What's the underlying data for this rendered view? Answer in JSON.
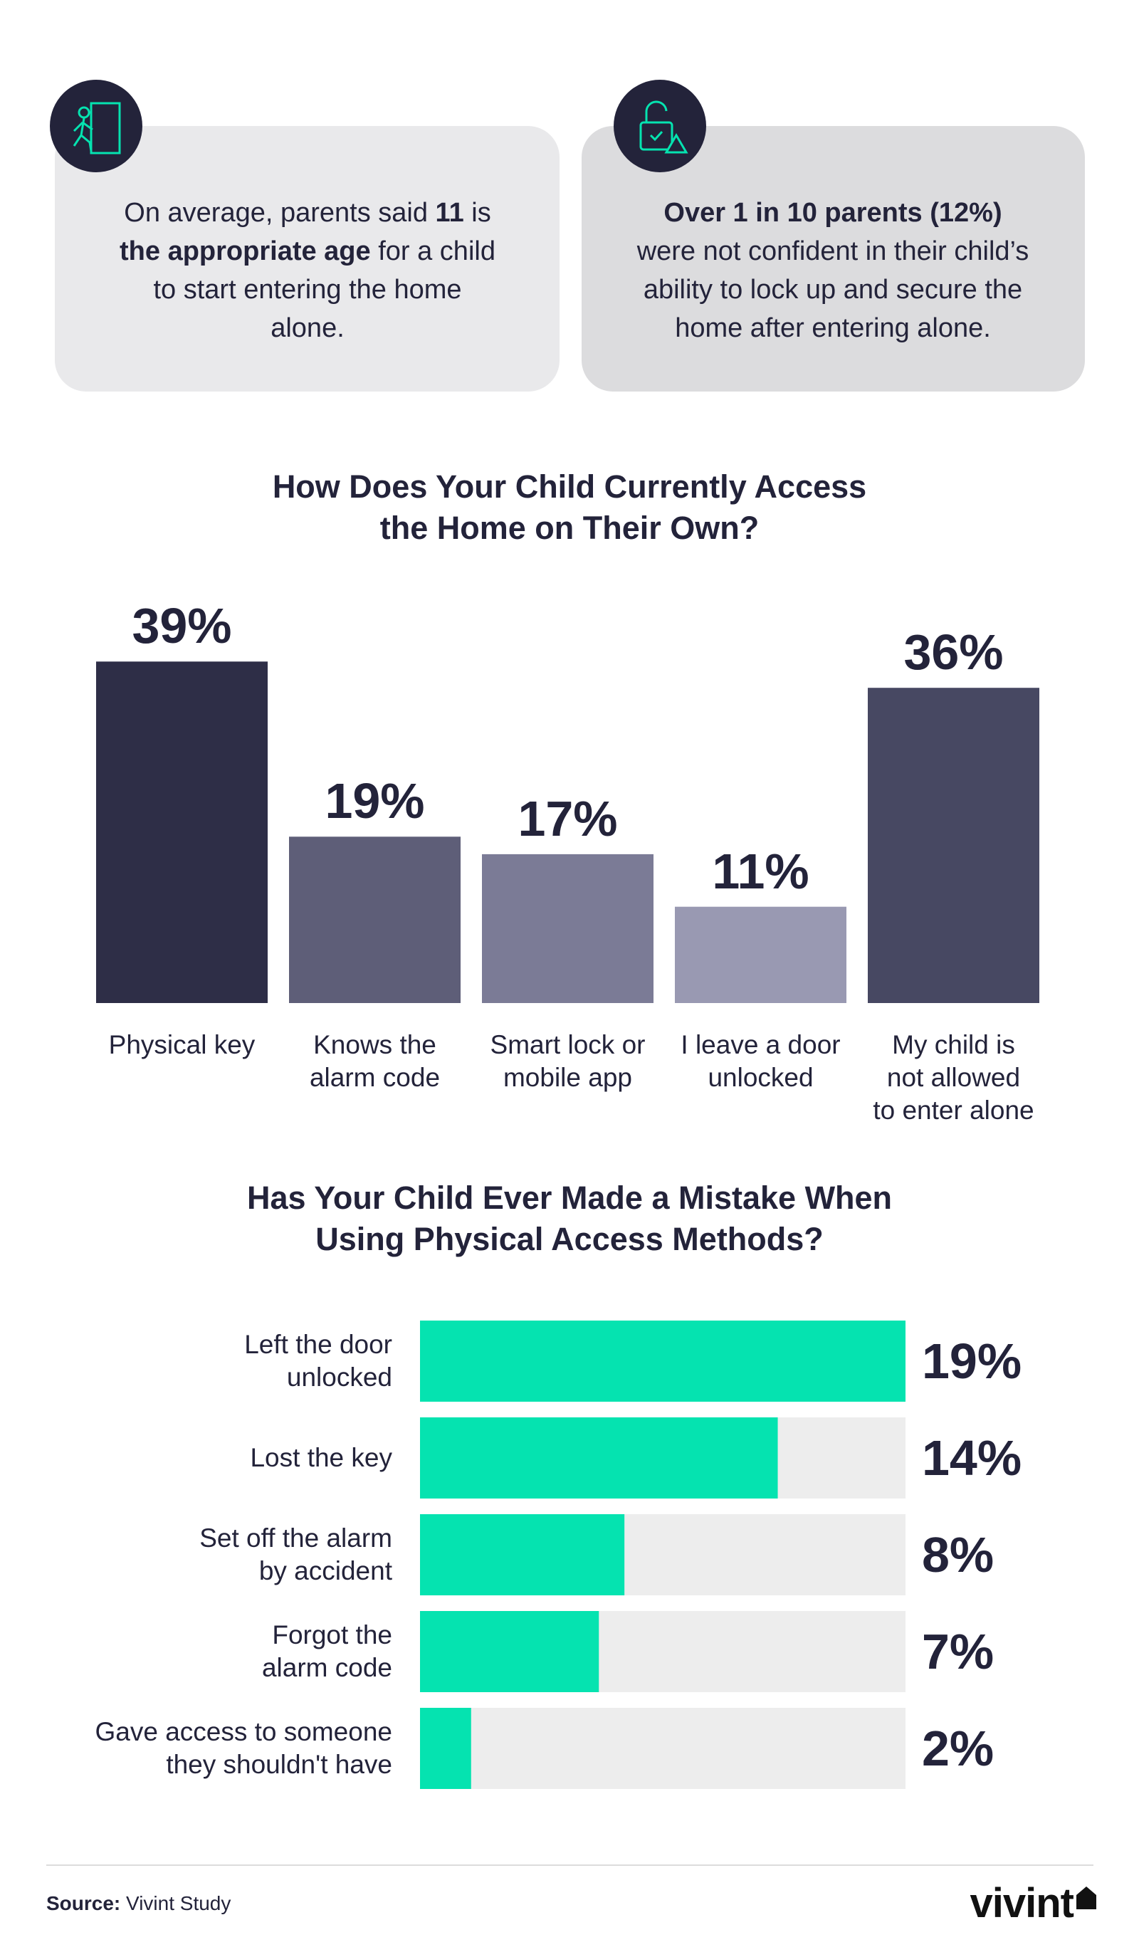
{
  "cards": [
    {
      "segments": [
        {
          "text": "On average, parents said "
        },
        {
          "text": "11",
          "bold": true
        },
        {
          "text": " is "
        },
        {
          "text": "the appropriate age",
          "bold": true
        },
        {
          "text": " for a child to start entering the home alone."
        }
      ]
    },
    {
      "segments": [
        {
          "text": "Over 1 in 10 parents (12%)",
          "bold": true
        },
        {
          "text": " were not confident in their child’s ability to lock up and secure the home after entering alone."
        }
      ]
    }
  ],
  "chart_data": [
    {
      "type": "bar",
      "title": "How Does Your Child Currently Access\nthe Home on Their Own?",
      "categories": [
        "Physical key",
        "Knows the\nalarm code",
        "Smart lock or\nmobile app",
        "I leave a door\nunlocked",
        "My child is\nnot allowed\nto enter alone"
      ],
      "values": [
        39,
        19,
        17,
        11,
        36
      ],
      "value_labels": [
        "39%",
        "19%",
        "17%",
        "11%",
        "36%"
      ],
      "colors": [
        "#2e2e47",
        "#5e5e78",
        "#7b7b96",
        "#9999b2",
        "#474862"
      ]
    },
    {
      "type": "hbar",
      "title": "Has Your Child Ever Made a Mistake When\nUsing Physical Access Methods?",
      "categories": [
        "Left the door\nunlocked",
        "Lost the key",
        "Set off the alarm\nby accident",
        "Forgot the\nalarm code",
        "Gave access to someone\nthey shouldn't have"
      ],
      "values": [
        19,
        14,
        8,
        7,
        2
      ],
      "value_labels": [
        "19%",
        "14%",
        "8%",
        "7%",
        "2%"
      ],
      "color": "#05e3b0",
      "track_color": "#ededed"
    }
  ],
  "footer": {
    "source_label": "Source:",
    "source": "Vivint Study",
    "logo": "vivint"
  }
}
